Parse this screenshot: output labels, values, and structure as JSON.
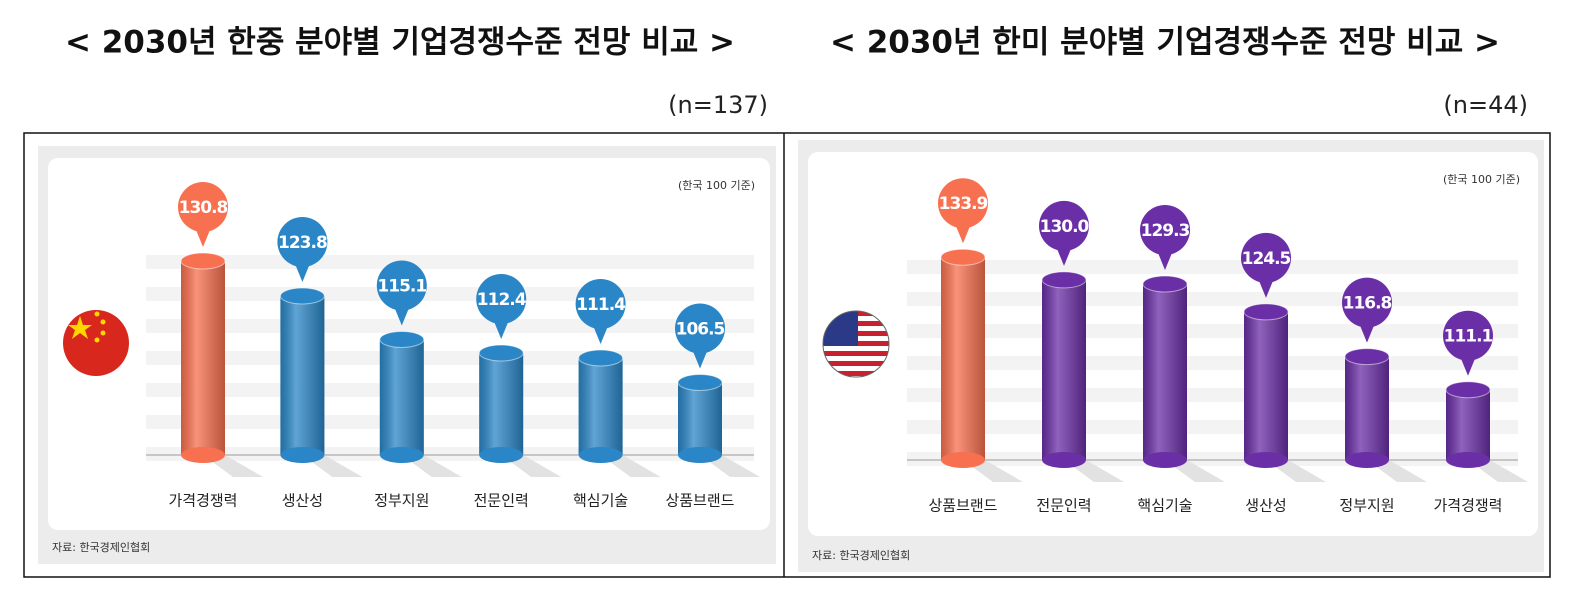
{
  "chart_data": [
    {
      "type": "bar",
      "title": "< 2030년 한중 분야별 기업경쟁수준 전망 비교 >",
      "subtitle": "(n=137)",
      "note": "(한국 100 기준)",
      "source": "자료: 한국경제인협회",
      "categories": [
        "가격경쟁력",
        "생산성",
        "정부지원",
        "전문인력",
        "핵심기술",
        "상품브랜드"
      ],
      "values": [
        130.8,
        123.8,
        115.1,
        112.4,
        111.4,
        106.5
      ],
      "value_labels": [
        "130.8",
        "123.8",
        "115.1",
        "112.4",
        "111.4",
        "106.5"
      ],
      "colors": [
        "#f7704f",
        "#2a86c6",
        "#2a86c6",
        "#2a86c6",
        "#2a86c6",
        "#2a86c6"
      ],
      "ylim": [
        92,
        152
      ]
    },
    {
      "type": "bar",
      "title": "< 2030년 한미 분야별 기업경쟁수준 전망 비교 >",
      "subtitle": "(n=44)",
      "note": "(한국 100 기준)",
      "source": "자료: 한국경제인협회",
      "categories": [
        "상품브랜드",
        "전문인력",
        "핵심기술",
        "생산성",
        "정부지원",
        "가격경쟁력"
      ],
      "values": [
        133.9,
        130.0,
        129.3,
        124.5,
        116.8,
        111.1
      ],
      "value_labels": [
        "133.9",
        "130.0",
        "129.3",
        "124.5",
        "116.8",
        "111.1"
      ],
      "colors": [
        "#f7704f",
        "#6a2fa6",
        "#6a2fa6",
        "#6a2fa6",
        "#6a2fa6",
        "#6a2fa6"
      ],
      "ylim": [
        99,
        151.5
      ]
    }
  ]
}
